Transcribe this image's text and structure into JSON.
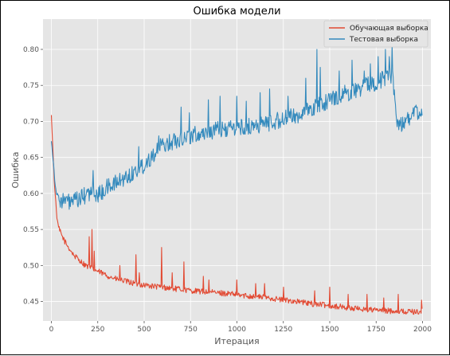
{
  "chart_data": {
    "type": "line",
    "title": "Ошибка модели",
    "xlabel": "Итерация",
    "ylabel": "Ошибка",
    "xlim": [
      -45,
      2045
    ],
    "ylim": [
      0.423,
      0.842
    ],
    "x_ticks": [
      0,
      250,
      500,
      750,
      1000,
      1250,
      1500,
      1750,
      2000
    ],
    "y_ticks": [
      0.45,
      0.5,
      0.55,
      0.6,
      0.65,
      0.7,
      0.75,
      0.8
    ],
    "grid": true,
    "legend_position": "top-right",
    "style": "ggplot",
    "series": [
      {
        "name": "Обучающая выборка",
        "color": "#E24A33",
        "points": [
          [
            0,
            0.708
          ],
          [
            5,
            0.68
          ],
          [
            10,
            0.65
          ],
          [
            15,
            0.62
          ],
          [
            20,
            0.6
          ],
          [
            25,
            0.585
          ],
          [
            30,
            0.565
          ],
          [
            40,
            0.552
          ],
          [
            50,
            0.545
          ],
          [
            75,
            0.532
          ],
          [
            100,
            0.522
          ],
          [
            125,
            0.513
          ],
          [
            150,
            0.508
          ],
          [
            175,
            0.502
          ],
          [
            200,
            0.498
          ],
          [
            225,
            0.495
          ],
          [
            250,
            0.492
          ],
          [
            275,
            0.489
          ],
          [
            300,
            0.486
          ],
          [
            350,
            0.481
          ],
          [
            400,
            0.478
          ],
          [
            450,
            0.475
          ],
          [
            500,
            0.473
          ],
          [
            550,
            0.471
          ],
          [
            600,
            0.47
          ],
          [
            650,
            0.468
          ],
          [
            700,
            0.467
          ],
          [
            750,
            0.465
          ],
          [
            800,
            0.464
          ],
          [
            850,
            0.463
          ],
          [
            900,
            0.462
          ],
          [
            950,
            0.461
          ],
          [
            1000,
            0.459
          ],
          [
            1050,
            0.458
          ],
          [
            1100,
            0.457
          ],
          [
            1150,
            0.456
          ],
          [
            1200,
            0.454
          ],
          [
            1250,
            0.452
          ],
          [
            1300,
            0.451
          ],
          [
            1350,
            0.449
          ],
          [
            1400,
            0.447
          ],
          [
            1450,
            0.446
          ],
          [
            1500,
            0.444
          ],
          [
            1550,
            0.443
          ],
          [
            1600,
            0.441
          ],
          [
            1650,
            0.44
          ],
          [
            1700,
            0.439
          ],
          [
            1750,
            0.438
          ],
          [
            1800,
            0.437
          ],
          [
            1850,
            0.437
          ],
          [
            1900,
            0.436
          ],
          [
            1950,
            0.436
          ],
          [
            2000,
            0.436
          ]
        ],
        "spikes": [
          [
            205,
            0.54
          ],
          [
            220,
            0.55
          ],
          [
            230,
            0.52
          ],
          [
            370,
            0.5
          ],
          [
            455,
            0.515
          ],
          [
            475,
            0.49
          ],
          [
            595,
            0.525
          ],
          [
            650,
            0.49
          ],
          [
            715,
            0.505
          ],
          [
            820,
            0.485
          ],
          [
            850,
            0.48
          ],
          [
            1000,
            0.48
          ],
          [
            1100,
            0.475
          ],
          [
            1150,
            0.475
          ],
          [
            1250,
            0.47
          ],
          [
            1420,
            0.465
          ],
          [
            1500,
            0.47
          ],
          [
            1600,
            0.46
          ],
          [
            1700,
            0.46
          ],
          [
            1790,
            0.455
          ],
          [
            1870,
            0.46
          ],
          [
            1995,
            0.452
          ]
        ],
        "noise": 0.004
      },
      {
        "name": "Тестовая выборка",
        "color": "#348ABD",
        "points": [
          [
            0,
            0.675
          ],
          [
            5,
            0.66
          ],
          [
            10,
            0.645
          ],
          [
            15,
            0.63
          ],
          [
            20,
            0.615
          ],
          [
            25,
            0.604
          ],
          [
            30,
            0.598
          ],
          [
            40,
            0.594
          ],
          [
            60,
            0.59
          ],
          [
            80,
            0.589
          ],
          [
            100,
            0.588
          ],
          [
            125,
            0.589
          ],
          [
            150,
            0.592
          ],
          [
            175,
            0.596
          ],
          [
            200,
            0.6
          ],
          [
            225,
            0.6
          ],
          [
            250,
            0.598
          ],
          [
            275,
            0.602
          ],
          [
            300,
            0.608
          ],
          [
            350,
            0.615
          ],
          [
            400,
            0.622
          ],
          [
            450,
            0.63
          ],
          [
            500,
            0.64
          ],
          [
            550,
            0.655
          ],
          [
            600,
            0.667
          ],
          [
            650,
            0.672
          ],
          [
            700,
            0.677
          ],
          [
            750,
            0.68
          ],
          [
            800,
            0.683
          ],
          [
            850,
            0.686
          ],
          [
            900,
            0.688
          ],
          [
            950,
            0.69
          ],
          [
            1000,
            0.691
          ],
          [
            1050,
            0.692
          ],
          [
            1100,
            0.694
          ],
          [
            1150,
            0.697
          ],
          [
            1200,
            0.7
          ],
          [
            1250,
            0.703
          ],
          [
            1300,
            0.707
          ],
          [
            1350,
            0.711
          ],
          [
            1400,
            0.716
          ],
          [
            1450,
            0.724
          ],
          [
            1500,
            0.73
          ],
          [
            1550,
            0.736
          ],
          [
            1600,
            0.74
          ],
          [
            1650,
            0.745
          ],
          [
            1700,
            0.75
          ],
          [
            1750,
            0.755
          ],
          [
            1800,
            0.76
          ],
          [
            1840,
            0.765
          ],
          [
            1860,
            0.7
          ],
          [
            1875,
            0.695
          ],
          [
            1900,
            0.7
          ],
          [
            1950,
            0.71
          ],
          [
            2000,
            0.715
          ]
        ],
        "spikes": [
          [
            225,
            0.632
          ],
          [
            470,
            0.665
          ],
          [
            580,
            0.68
          ],
          [
            700,
            0.72
          ],
          [
            745,
            0.712
          ],
          [
            845,
            0.73
          ],
          [
            910,
            0.735
          ],
          [
            1000,
            0.735
          ],
          [
            1050,
            0.728
          ],
          [
            1125,
            0.74
          ],
          [
            1175,
            0.745
          ],
          [
            1275,
            0.735
          ],
          [
            1370,
            0.76
          ],
          [
            1430,
            0.8
          ],
          [
            1450,
            0.775
          ],
          [
            1550,
            0.77
          ],
          [
            1620,
            0.785
          ],
          [
            1685,
            0.77
          ],
          [
            1720,
            0.78
          ],
          [
            1760,
            0.79
          ],
          [
            1800,
            0.8
          ],
          [
            1820,
            0.79
          ],
          [
            1835,
            0.805
          ]
        ],
        "noise": 0.012
      }
    ]
  }
}
